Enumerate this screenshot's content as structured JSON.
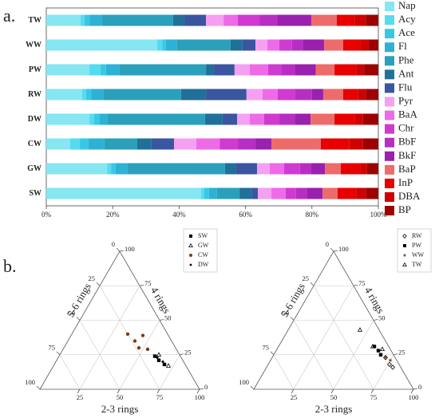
{
  "labels": {
    "a": "a.",
    "b": "b."
  },
  "chart_data": [
    {
      "type": "bar",
      "orientation": "horizontal",
      "stacked": true,
      "legend": "right",
      "categories": [
        "TW",
        "WW",
        "PW",
        "RW",
        "DW",
        "CW",
        "GW",
        "SW"
      ],
      "xlim": [
        0,
        100
      ],
      "xticks": [
        {
          "value": 0,
          "label": "0%"
        },
        {
          "value": 20,
          "label": "20%"
        },
        {
          "value": 40,
          "label": "40%"
        },
        {
          "value": 60,
          "label": "60%"
        },
        {
          "value": 80,
          "label": "80%"
        },
        {
          "value": 100,
          "label": "100%"
        }
      ],
      "series": [
        {
          "name": "Nap",
          "color": "#86e6f2",
          "values": [
            10.3,
            33.4,
            13,
            10.8,
            13,
            7.2,
            18.3,
            46.6
          ]
        },
        {
          "name": "Acy",
          "color": "#55dbef",
          "values": [
            1.2,
            1.5,
            3.3,
            1.2,
            1.4,
            2.9,
            1.2,
            1
          ]
        },
        {
          "name": "Ace",
          "color": "#38c8e4",
          "values": [
            1.5,
            1.1,
            1.7,
            1.5,
            1.7,
            2.6,
            1.4,
            1.4
          ]
        },
        {
          "name": "Fl",
          "color": "#2cb2d4",
          "values": [
            3.8,
            3.4,
            4.1,
            3.8,
            2.4,
            4.8,
            3.6,
            2.4
          ]
        },
        {
          "name": "Phe",
          "color": "#2aa0bd",
          "values": [
            21.4,
            16.1,
            26,
            23.3,
            29.3,
            9.9,
            29.3,
            6.8
          ]
        },
        {
          "name": "Ant",
          "color": "#1f7199",
          "values": [
            3.4,
            3.6,
            2.4,
            7.5,
            5.3,
            4.3,
            3.4,
            3.8
          ]
        },
        {
          "name": "Flu",
          "color": "#3a56a0",
          "values": [
            6.5,
            3.9,
            6.2,
            12.2,
            4.4,
            6.8,
            6.3,
            1.7
          ]
        },
        {
          "name": "Pyr",
          "color": "#f5a0f2",
          "values": [
            5.3,
            3.6,
            4.6,
            4.8,
            3.8,
            6.7,
            3.8,
            4.1
          ]
        },
        {
          "name": "BaA",
          "color": "#ee6be8",
          "values": [
            4.3,
            3.6,
            5.5,
            4.6,
            4.3,
            7,
            4.3,
            4.3
          ]
        },
        {
          "name": "Chr",
          "color": "#d03ad0",
          "values": [
            6.5,
            3.8,
            3.9,
            5.1,
            4.6,
            5.5,
            4.8,
            3.1
          ]
        },
        {
          "name": "BbF",
          "color": "#b82ec4",
          "values": [
            5.3,
            3.4,
            4.3,
            5.2,
            4.6,
            5.3,
            3.4,
            3.4
          ]
        },
        {
          "name": "BkF",
          "color": "#9a20ae",
          "values": [
            10.3,
            6.3,
            6.2,
            3.4,
            4.8,
            4.8,
            4.1,
            4.6
          ]
        },
        {
          "name": "BaP",
          "color": "#ee6b6b",
          "values": [
            7.7,
            5.7,
            5.6,
            6,
            7.2,
            14.9,
            4.8,
            4.5
          ]
        },
        {
          "name": "InP",
          "color": "#e80000",
          "values": [
            5.5,
            5.3,
            6.5,
            4.4,
            6.2,
            8.6,
            6,
            5.6
          ]
        },
        {
          "name": "DBA",
          "color": "#d00000",
          "values": [
            3.2,
            2.4,
            2.4,
            2.4,
            2.4,
            4.1,
            1.9,
            2.9
          ]
        },
        {
          "name": "BP",
          "color": "#9e0000",
          "values": [
            3.8,
            2.9,
            4.3,
            3.8,
            4.6,
            4.6,
            3.4,
            3.8
          ]
        }
      ]
    },
    {
      "type": "ternary",
      "legend": "upper right",
      "grid": true,
      "axes": [
        {
          "label": "2-3 rings",
          "ticks": [
            25,
            50,
            75,
            100
          ]
        },
        {
          "label": "4 rings",
          "ticks": [
            0,
            25,
            50,
            75,
            100
          ]
        },
        {
          "label": "5-6 rings",
          "ticks": [
            0,
            25,
            50,
            75,
            100
          ]
        }
      ],
      "series": [
        {
          "name": "SW",
          "marker": "square",
          "color": "#000000",
          "values": [
            [
              60,
              24,
              16
            ],
            [
              64,
              21,
              15
            ],
            [
              69,
              18,
              13
            ]
          ]
        },
        {
          "name": "GW",
          "marker": "triangle-open",
          "color": "#000000",
          "values": [
            [
              62,
              25,
              13
            ],
            [
              72,
              17,
              11
            ]
          ]
        },
        {
          "name": "CW",
          "marker": "circle",
          "color": "#7a3e12",
          "values": [
            [
              35,
              40,
              25
            ],
            [
              45,
              39,
              16
            ],
            [
              42,
              35,
              23
            ],
            [
              47,
              30,
              23
            ],
            [
              53,
              29,
              18
            ]
          ]
        },
        {
          "name": "DW",
          "marker": "dot",
          "color": "#000000",
          "values": [
            [
              62,
              23,
              15
            ],
            [
              67,
              20,
              13
            ]
          ]
        }
      ]
    },
    {
      "type": "ternary",
      "legend": "upper right",
      "grid": true,
      "axes": [
        {
          "label": "2-3 rings",
          "ticks": [
            25,
            50,
            75,
            100
          ]
        },
        {
          "label": "4 rings",
          "ticks": [
            0,
            25,
            50,
            75,
            100
          ]
        },
        {
          "label": "5-6 rings",
          "ticks": [
            0,
            25,
            50,
            75,
            100
          ]
        }
      ],
      "series": [
        {
          "name": "RW",
          "marker": "diamond-open",
          "color": "#000000",
          "values": [
            [
              71,
              23,
              6
            ],
            [
              76,
              18,
              6
            ],
            [
              79,
              16,
              5
            ]
          ]
        },
        {
          "name": "PW",
          "marker": "square",
          "color": "#000000",
          "values": [
            [
              60,
              31,
              9
            ],
            [
              64,
              28,
              8
            ],
            [
              67,
              25,
              8
            ]
          ]
        },
        {
          "name": "WW",
          "marker": "star",
          "color": "#7a3e12",
          "values": [
            [
              71,
              23,
              6
            ],
            [
              75,
              21,
              4
            ]
          ]
        },
        {
          "name": "TW",
          "marker": "triangle-open",
          "color": "#000000",
          "values": [
            [
              45,
              43,
              12
            ],
            [
              59,
              31,
              10
            ],
            [
              66,
              29,
              5
            ]
          ]
        }
      ]
    }
  ]
}
